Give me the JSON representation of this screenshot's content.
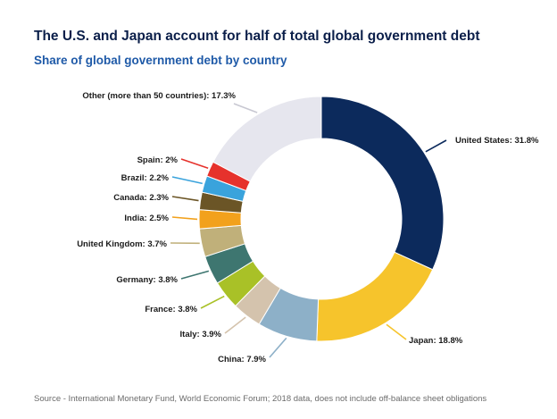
{
  "header": {
    "title": "The U.S. and Japan account for half of total global government debt",
    "subtitle": "Share of global government debt by country"
  },
  "footer": {
    "source": "Source - International Monetary Fund, World Economic Forum; 2018 data, does not include off-balance sheet obligations"
  },
  "chart_data": {
    "type": "pie",
    "donut": true,
    "title": "The U.S. and Japan account for half of total global government debt",
    "subtitle": "Share of global government debt by country",
    "unit": "%",
    "slices": [
      {
        "name": "United States",
        "value": 31.8,
        "label": "United States: 31.8%",
        "color": "#0c2a5c"
      },
      {
        "name": "Japan",
        "value": 18.8,
        "label": "Japan: 18.8%",
        "color": "#f6c42c"
      },
      {
        "name": "China",
        "value": 7.9,
        "label": "China: 7.9%",
        "color": "#8db0c8"
      },
      {
        "name": "Italy",
        "value": 3.9,
        "label": "Italy: 3.9%",
        "color": "#d4c3ad"
      },
      {
        "name": "France",
        "value": 3.8,
        "label": "France: 3.8%",
        "color": "#a9c127"
      },
      {
        "name": "Germany",
        "value": 3.8,
        "label": "Germany: 3.8%",
        "color": "#3e7670"
      },
      {
        "name": "United Kingdom",
        "value": 3.7,
        "label": "United Kingdom: 3.7%",
        "color": "#c0b07a"
      },
      {
        "name": "India",
        "value": 2.5,
        "label": "India: 2.5%",
        "color": "#f2a11c"
      },
      {
        "name": "Canada",
        "value": 2.3,
        "label": "Canada: 2.3%",
        "color": "#6b5526"
      },
      {
        "name": "Brazil",
        "value": 2.2,
        "label": "Brazil: 2.2%",
        "color": "#3aa3dc"
      },
      {
        "name": "Spain",
        "value": 2.0,
        "label": "Spain: 2%",
        "color": "#e6322c"
      },
      {
        "name": "Other (more than 50 countries)",
        "value": 17.3,
        "label": "Other (more than 50 countries): 17.3%",
        "color": "#e6e6ee"
      }
    ]
  }
}
